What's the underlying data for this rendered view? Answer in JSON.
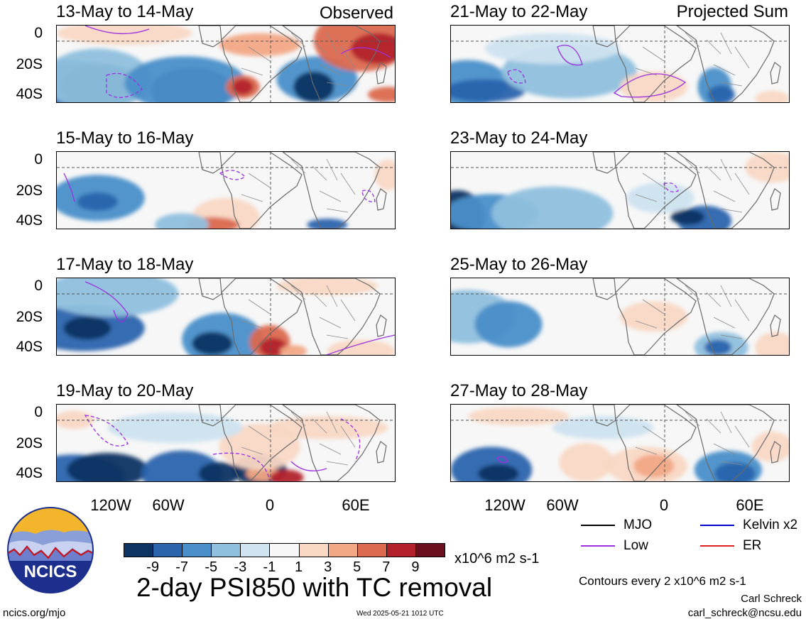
{
  "left_header": "Observed",
  "right_header": "Projected Sum",
  "panels": [
    {
      "date": "13-May to 14-May",
      "column": "left",
      "row": 0
    },
    {
      "date": "21-May to 22-May",
      "column": "right",
      "row": 0
    },
    {
      "date": "15-May to 16-May",
      "column": "left",
      "row": 1
    },
    {
      "date": "23-May to 24-May",
      "column": "right",
      "row": 1
    },
    {
      "date": "17-May to 18-May",
      "column": "left",
      "row": 2
    },
    {
      "date": "25-May to 26-May",
      "column": "right",
      "row": 2
    },
    {
      "date": "19-May to 20-May",
      "column": "left",
      "row": 3
    },
    {
      "date": "27-May to 28-May",
      "column": "right",
      "row": 3
    }
  ],
  "y_ticks": [
    "0",
    "20S",
    "40S"
  ],
  "x_ticks": [
    "120W",
    "60W",
    "0",
    "60E"
  ],
  "colorbar": {
    "ticks": [
      "-9",
      "-7",
      "-5",
      "-3",
      "-1",
      "1",
      "3",
      "5",
      "7",
      "9"
    ],
    "units": "x10^6 m2 s-1",
    "colors": [
      "#0d3362",
      "#2a64ad",
      "#4a8fc9",
      "#8fc0de",
      "#cfe3f0",
      "#f7f7f7",
      "#f9d8c4",
      "#f2a885",
      "#db6a50",
      "#b3222c",
      "#6b0e1e"
    ]
  },
  "title": "2-day PSI850 with TC removal",
  "logo": {
    "text": "NCICS"
  },
  "footer": {
    "url": "ncics.org/mjo",
    "timestamp": "Wed 2025-05-21 1012 UTC",
    "author": "Carl Schreck",
    "email": "carl_schreck@ncsu.edu",
    "contour_note": "Contours every 2 x10^6 m2 s-1"
  },
  "legend": [
    {
      "label": "MJO",
      "color": "#000000"
    },
    {
      "label": "Kelvin x2",
      "color": "#0000cc"
    },
    {
      "label": "Low",
      "color": "#9b30e0"
    },
    {
      "label": "ER",
      "color": "#e02020"
    }
  ]
}
